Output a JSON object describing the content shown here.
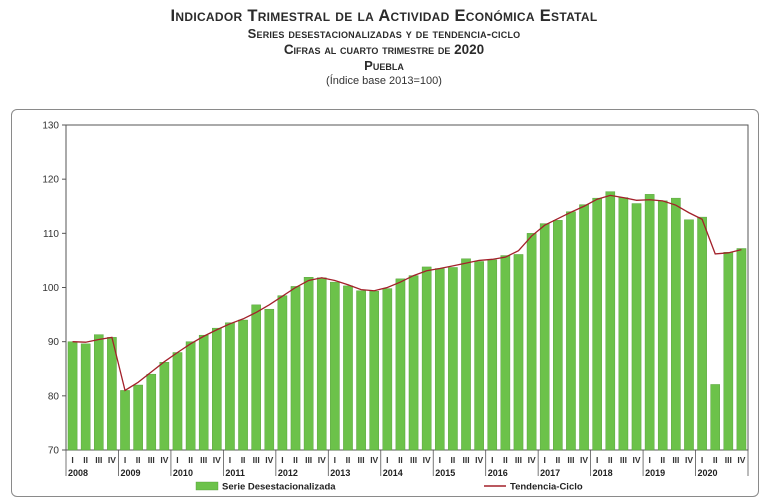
{
  "header": {
    "title": "Indicador Trimestral de la Actividad Económica Estatal",
    "subtitle": "Series desestacionalizadas y de tendencia-ciclo",
    "period": "Cifras al cuarto trimestre de 2020",
    "state": "Puebla",
    "base": "(Índice base 2013=100)"
  },
  "chart_data": {
    "type": "bar",
    "title": "Indicador Trimestral de la Actividad Económica Estatal",
    "ylim": [
      70,
      130
    ],
    "yticks": [
      70,
      80,
      90,
      100,
      110,
      120,
      130
    ],
    "grid": false,
    "legend_position": "bottom",
    "quarter_labels": [
      "I",
      "II",
      "III",
      "IV"
    ],
    "years": [
      "2008",
      "2009",
      "2010",
      "2011",
      "2012",
      "2013",
      "2014",
      "2015",
      "2016",
      "2017",
      "2018",
      "2019",
      "2020"
    ],
    "series": [
      {
        "name": "Serie Desestacionalizada",
        "type": "bar",
        "color": "#6cc24a",
        "values": [
          90.0,
          89.6,
          91.3,
          90.8,
          81.0,
          82.0,
          84.0,
          86.2,
          88.0,
          90.0,
          91.2,
          92.5,
          93.5,
          94.0,
          96.8,
          96.0,
          98.5,
          100.2,
          101.9,
          101.8,
          101.0,
          100.3,
          99.4,
          99.3,
          99.8,
          101.6,
          102.2,
          103.8,
          103.5,
          103.7,
          105.3,
          104.8,
          105.1,
          105.9,
          106.1,
          110.0,
          111.8,
          112.4,
          114.0,
          115.3,
          116.5,
          117.7,
          116.6,
          115.5,
          117.2,
          116.0,
          116.5,
          112.5,
          113.0,
          82.1,
          106.5,
          107.2
        ]
      },
      {
        "name": "Tendencia-Ciclo",
        "type": "line",
        "color": "#a3202a",
        "values": [
          90.0,
          89.9,
          90.4,
          90.8,
          81.0,
          82.5,
          84.4,
          86.3,
          88.0,
          89.6,
          91.0,
          92.2,
          93.3,
          94.2,
          95.4,
          96.8,
          98.4,
          100.0,
          101.3,
          101.8,
          101.3,
          100.5,
          99.6,
          99.4,
          100.0,
          101.0,
          102.2,
          103.1,
          103.5,
          104.0,
          104.5,
          105.0,
          105.2,
          105.6,
          106.8,
          109.5,
          111.5,
          112.7,
          113.9,
          115.0,
          116.3,
          117.0,
          116.6,
          116.1,
          116.2,
          116.0,
          115.2,
          113.8,
          112.6,
          106.2,
          106.4,
          107.0
        ]
      }
    ]
  },
  "legend": {
    "bar_label": "Serie Desestacionalizada",
    "line_label": "Tendencia-Ciclo"
  }
}
